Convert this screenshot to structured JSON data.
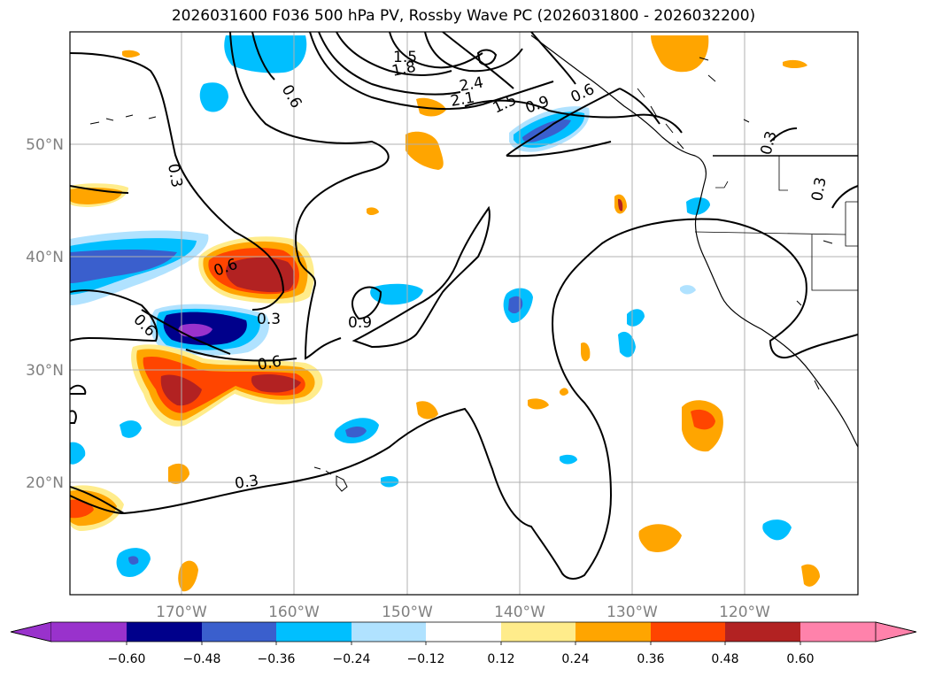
{
  "title": "2026031600 F036 500 hPa PV, Rossby Wave PC (2026031800 - 2026032200)",
  "map": {
    "lat_labels": [
      "50°N",
      "40°N",
      "30°N",
      "20°N"
    ],
    "lon_labels": [
      "170°W",
      "160°W",
      "150°W",
      "140°W",
      "130°W",
      "120°W"
    ],
    "contour_labels": [
      "1.5",
      "1.8",
      "2.4",
      "2.1",
      "1.5",
      "0.9",
      "0.6",
      "0.3",
      "0.3",
      "0.6",
      "0.3",
      "0.6",
      "0.6",
      "0.9",
      "0.3",
      "0.3",
      "0.6"
    ],
    "colors": {
      "grid": "#b0b0b0",
      "contour": "#000000",
      "coast": "#000000"
    }
  },
  "colorbar": {
    "ticks": [
      "−0.60",
      "−0.48",
      "−0.36",
      "−0.24",
      "−0.12",
      "0.12",
      "0.24",
      "0.36",
      "0.48",
      "0.60"
    ],
    "colors": [
      "#9932cc",
      "#00008b",
      "#3a5fcd",
      "#00bfff",
      "#b0e2ff",
      "#ffffff",
      "#ffec8b",
      "#ffa500",
      "#ff4500",
      "#b22222",
      "#ff82ab"
    ]
  }
}
